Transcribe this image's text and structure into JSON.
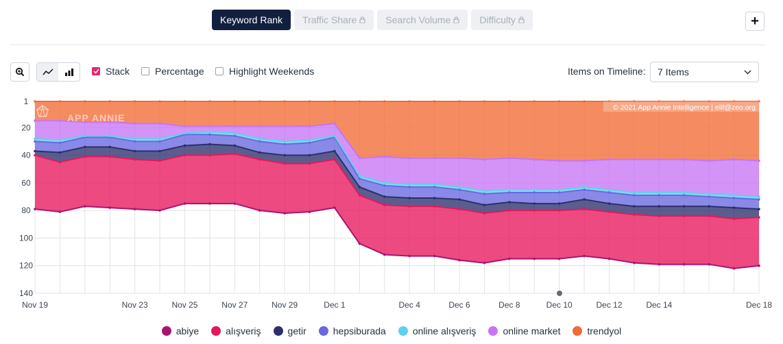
{
  "tabs": {
    "keyword_rank": "Keyword Rank",
    "traffic_share": "Traffic Share",
    "search_volume": "Search Volume",
    "difficulty": "Difficulty"
  },
  "controls": {
    "plus": "+",
    "stack_label": "Stack",
    "percentage_label": "Percentage",
    "highlight_weekends_label": "Highlight Weekends",
    "items_on_timeline_label": "Items on Timeline:",
    "items_value": "7 Items"
  },
  "watermark": {
    "brand": "APP ANNIE",
    "copyright": "© 2021 App Annie Intelligence | elif@zeo.org"
  },
  "colors": {
    "abiye": "#a8146f",
    "alisveris": "#e8175d",
    "getir": "#2d2f6d",
    "hepsiburada": "#6a68e0",
    "online_alisveris": "#5fd1ec",
    "online_market": "#c774f5",
    "trendyol": "#f26b35"
  },
  "chart_data": {
    "type": "area",
    "stacked": true,
    "y_reversed": true,
    "ylim": [
      1,
      140
    ],
    "yticks": [
      "1",
      "20",
      "40",
      "60",
      "80",
      "100",
      "120",
      "140"
    ],
    "x": [
      "Nov 19",
      "Nov 20",
      "Nov 21",
      "Nov 22",
      "Nov 23",
      "Nov 24",
      "Nov 25",
      "Nov 26",
      "Nov 27",
      "Nov 28",
      "Nov 29",
      "Nov 30",
      "Dec 1",
      "Dec 2",
      "Dec 3",
      "Dec 4",
      "Dec 5",
      "Dec 6",
      "Dec 7",
      "Dec 8",
      "Dec 9",
      "Dec 10",
      "Dec 11",
      "Dec 12",
      "Dec 13",
      "Dec 14",
      "Dec 15",
      "Dec 16",
      "Dec 17",
      "Dec 18"
    ],
    "xtick_labels": [
      "Nov 19",
      "Nov 23",
      "Nov 25",
      "Nov 27",
      "Nov 29",
      "Dec 1",
      "Dec 4",
      "Dec 6",
      "Dec 8",
      "Dec 10",
      "Dec 12",
      "Dec 14",
      "Dec 18"
    ],
    "series": [
      {
        "name": "trendyol",
        "values": [
          1,
          1,
          1,
          1,
          1,
          1,
          1,
          1,
          1,
          1,
          1,
          1,
          1,
          1,
          1,
          1,
          1,
          1,
          1,
          1,
          1,
          1,
          1,
          1,
          1,
          1,
          1,
          1,
          1,
          1
        ]
      },
      {
        "name": "online market",
        "values": [
          15,
          15,
          16,
          16,
          17,
          17,
          19,
          19,
          19,
          19,
          19,
          19,
          17,
          42,
          41,
          42,
          42,
          42,
          43,
          42,
          43,
          44,
          44,
          43,
          43,
          43,
          43,
          44,
          43,
          44
        ]
      },
      {
        "name": "online alışveriş",
        "values": [
          28,
          29,
          26,
          26,
          28,
          28,
          24,
          23,
          24,
          28,
          30,
          29,
          26,
          55,
          60,
          61,
          61,
          63,
          66,
          65,
          65,
          65,
          63,
          65,
          67,
          67,
          67,
          68,
          69,
          70
        ]
      },
      {
        "name": "hepsiburada",
        "values": [
          30,
          31,
          27,
          27,
          30,
          30,
          25,
          25,
          26,
          30,
          32,
          31,
          27,
          57,
          62,
          63,
          63,
          65,
          68,
          67,
          67,
          67,
          65,
          67,
          69,
          69,
          69,
          70,
          71,
          72
        ]
      },
      {
        "name": "getir",
        "values": [
          37,
          38,
          34,
          34,
          37,
          37,
          33,
          32,
          33,
          38,
          40,
          40,
          37,
          63,
          70,
          71,
          71,
          72,
          76,
          74,
          75,
          75,
          72,
          75,
          77,
          77,
          77,
          77,
          78,
          79
        ]
      },
      {
        "name": "alışveriş",
        "values": [
          40,
          45,
          41,
          41,
          43,
          44,
          40,
          40,
          39,
          43,
          46,
          46,
          43,
          69,
          76,
          77,
          77,
          79,
          82,
          80,
          80,
          80,
          79,
          81,
          83,
          84,
          84,
          84,
          86,
          85
        ]
      },
      {
        "name": "abiye",
        "values": [
          79,
          81,
          77,
          78,
          79,
          80,
          75,
          75,
          75,
          80,
          82,
          81,
          78,
          104,
          112,
          113,
          113,
          116,
          118,
          115,
          115,
          115,
          113,
          115,
          118,
          119,
          119,
          119,
          122,
          120
        ]
      }
    ]
  }
}
